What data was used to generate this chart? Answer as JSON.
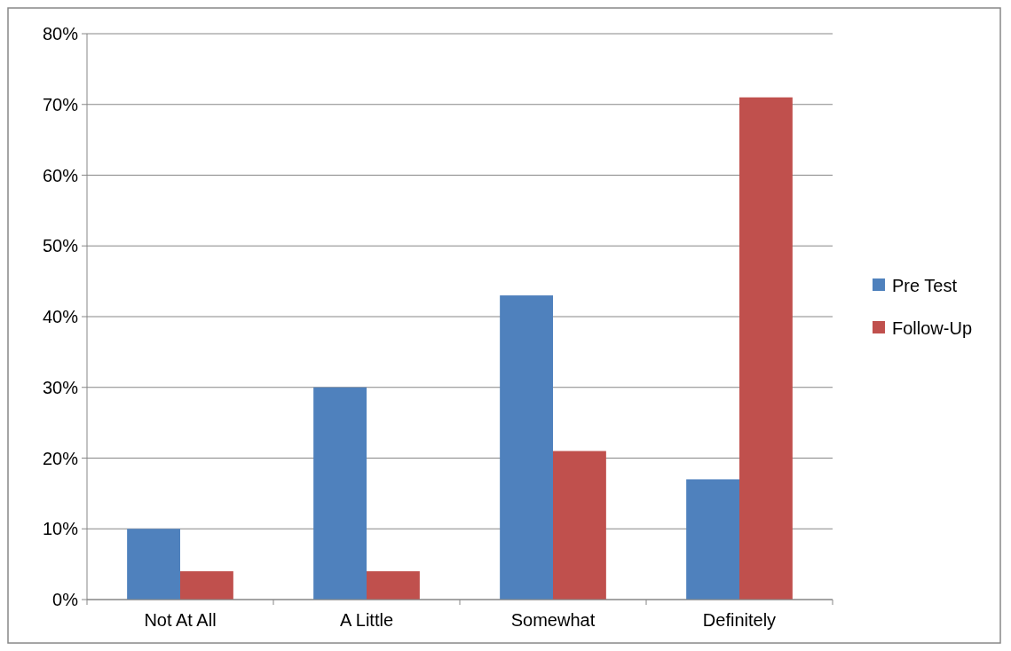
{
  "chart_data": {
    "type": "bar",
    "categories": [
      "Not At All",
      "A Little",
      "Somewhat",
      "Definitely"
    ],
    "series": [
      {
        "name": "Pre Test",
        "color": "#4f81bd",
        "values": [
          10,
          30,
          43,
          17
        ]
      },
      {
        "name": "Follow-Up",
        "color": "#c0504d",
        "values": [
          4,
          4,
          21,
          71
        ]
      }
    ],
    "ylim": [
      0,
      80
    ],
    "yticks": [
      {
        "value": 0,
        "label": "0%"
      },
      {
        "value": 10,
        "label": "10%"
      },
      {
        "value": 20,
        "label": "20%"
      },
      {
        "value": 30,
        "label": "30%"
      },
      {
        "value": 40,
        "label": "40%"
      },
      {
        "value": 50,
        "label": "50%"
      },
      {
        "value": 60,
        "label": "60%"
      },
      {
        "value": 70,
        "label": "70%"
      },
      {
        "value": 80,
        "label": "80%"
      }
    ],
    "grid": "y",
    "legend": "right"
  }
}
